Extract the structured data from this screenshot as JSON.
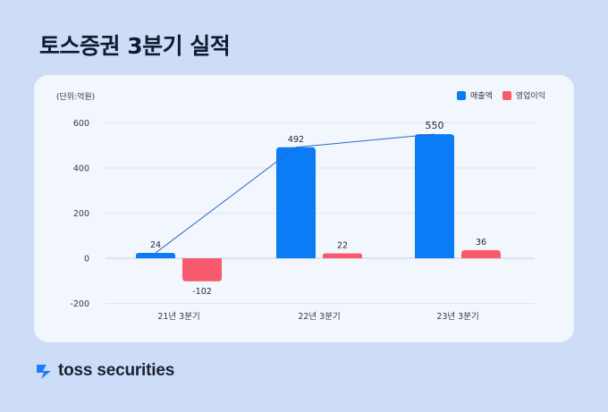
{
  "page": {
    "title": "토스증권 3분기 실적",
    "unit_label": "(단위:억원)",
    "brand": "toss securities"
  },
  "colors": {
    "background": "#cddcf7",
    "card": "#f2f6fd",
    "revenue": "#0a7cf6",
    "operating_profit": "#f65a6c",
    "trend_line": "#2a68c8",
    "brand_logo": "#1f7cf5"
  },
  "chart_data": {
    "type": "bar",
    "categories": [
      "21년 3분기",
      "22년 3분기",
      "23년 3분기"
    ],
    "series": [
      {
        "name": "매출액",
        "values": [
          24,
          492,
          550
        ],
        "labels": [
          "24",
          "492",
          "550"
        ]
      },
      {
        "name": "영업이익",
        "values": [
          -102,
          22,
          36
        ],
        "labels": [
          "-102",
          "22",
          "36"
        ]
      }
    ],
    "trend_line_series": "매출액",
    "yticks": [
      600,
      400,
      200,
      0,
      -200
    ],
    "ylim": [
      -200,
      600
    ],
    "grid": true,
    "legend_position": "top-right"
  }
}
